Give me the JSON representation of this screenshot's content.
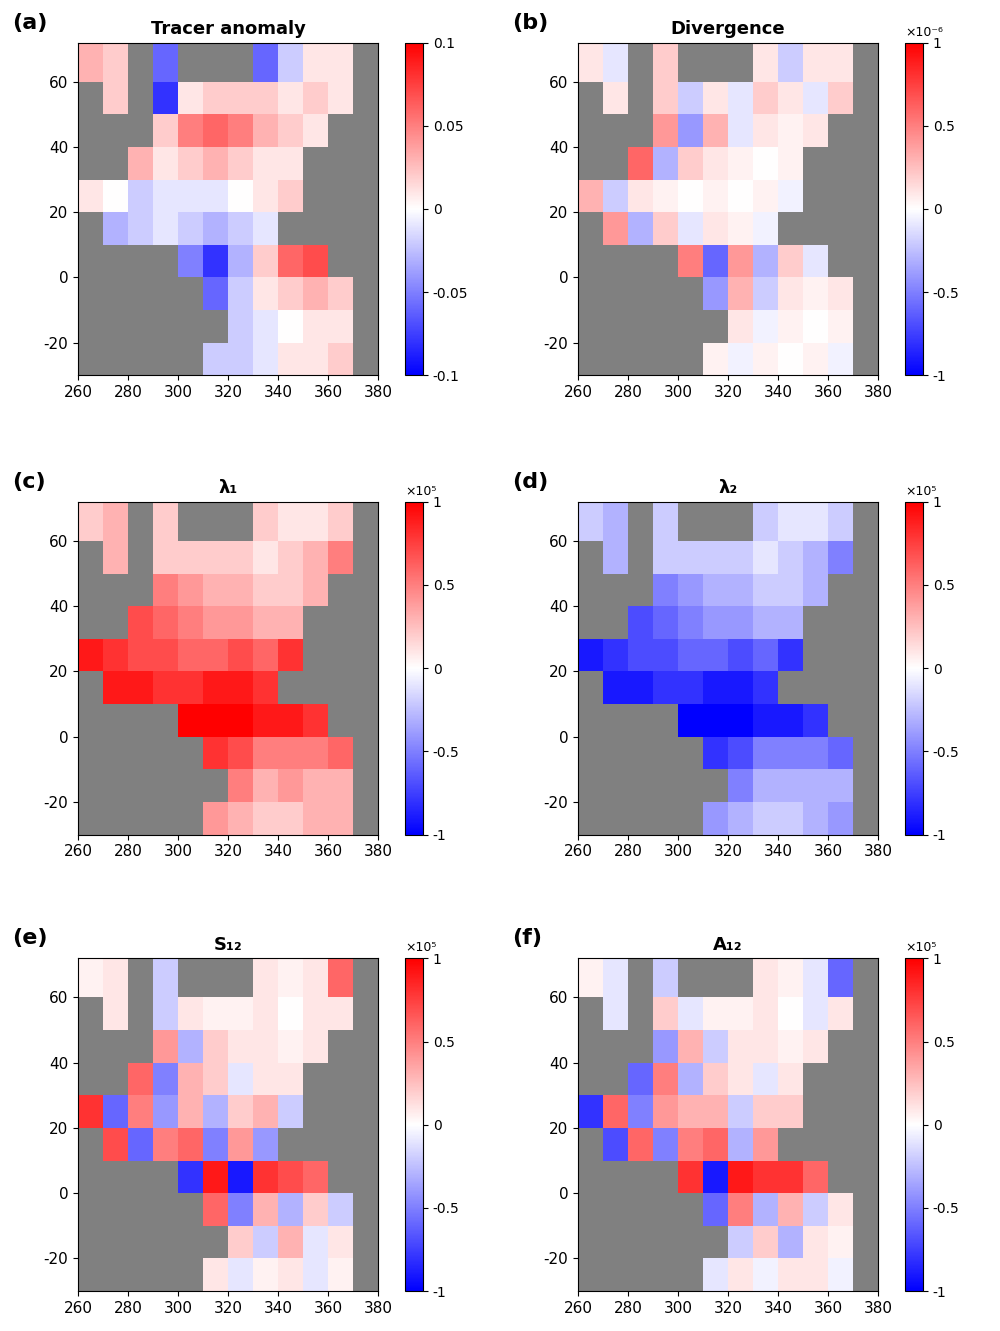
{
  "chart_data": [
    {
      "type": "heatmap",
      "panel_label": "(a)",
      "title": "Tracer anomaly",
      "x_edges": [
        260,
        270,
        280,
        290,
        300,
        310,
        320,
        330,
        340,
        350,
        360,
        370,
        380
      ],
      "y_edges": [
        -30,
        -20,
        -10,
        0,
        10,
        20,
        30,
        40,
        50,
        60,
        72
      ],
      "cells": [
        [
          null,
          null,
          null,
          null,
          null,
          -0.02,
          -0.02,
          -0.01,
          0.01,
          0.01,
          0.02,
          null
        ],
        [
          null,
          null,
          null,
          null,
          null,
          null,
          -0.02,
          -0.01,
          0.0,
          0.01,
          0.01,
          null
        ],
        [
          null,
          null,
          null,
          null,
          null,
          -0.06,
          -0.02,
          0.01,
          0.02,
          0.03,
          0.02,
          null
        ],
        [
          null,
          null,
          null,
          null,
          -0.05,
          -0.08,
          -0.03,
          0.02,
          0.06,
          0.07,
          null,
          null
        ],
        [
          null,
          -0.03,
          -0.02,
          -0.01,
          -0.02,
          -0.03,
          -0.02,
          -0.01,
          null,
          null,
          null,
          null
        ],
        [
          0.01,
          0.0,
          -0.02,
          -0.01,
          -0.01,
          -0.01,
          0.0,
          0.01,
          0.02,
          null,
          null,
          null
        ],
        [
          null,
          null,
          0.03,
          0.01,
          0.02,
          0.03,
          0.02,
          0.01,
          0.01,
          null,
          null,
          null
        ],
        [
          null,
          null,
          null,
          0.02,
          0.05,
          0.06,
          0.05,
          0.03,
          0.02,
          0.01,
          null,
          null
        ],
        [
          null,
          0.02,
          null,
          -0.08,
          0.01,
          0.02,
          0.02,
          0.02,
          0.01,
          0.02,
          0.01,
          null
        ],
        [
          0.03,
          0.02,
          null,
          -0.06,
          null,
          null,
          null,
          -0.06,
          -0.02,
          0.01,
          0.01,
          null
        ]
      ],
      "xlim": [
        260,
        380
      ],
      "ylim": [
        -30,
        72
      ],
      "xticks": [
        260,
        280,
        300,
        320,
        340,
        360,
        380
      ],
      "yticks": [
        -20,
        0,
        20,
        40,
        60
      ],
      "colorbar": {
        "range": [
          -0.1,
          0.1
        ],
        "ticks": [
          -0.1,
          -0.05,
          0,
          0.05,
          0.1
        ]
      }
    },
    {
      "type": "heatmap",
      "panel_label": "(b)",
      "title": "Divergence",
      "x_edges": [
        260,
        270,
        280,
        290,
        300,
        310,
        320,
        330,
        340,
        350,
        360,
        370,
        380
      ],
      "y_edges": [
        -30,
        -20,
        -10,
        0,
        10,
        20,
        30,
        40,
        50,
        60,
        72
      ],
      "cells": [
        [
          null,
          null,
          null,
          null,
          null,
          0.05,
          -0.05,
          0.05,
          0.0,
          0.05,
          -0.05,
          null
        ],
        [
          null,
          null,
          null,
          null,
          null,
          null,
          0.1,
          -0.05,
          0.05,
          0.0,
          0.05,
          null
        ],
        [
          null,
          null,
          null,
          null,
          null,
          -0.4,
          0.3,
          -0.2,
          0.1,
          0.05,
          0.1,
          null
        ],
        [
          null,
          null,
          null,
          null,
          0.5,
          -0.6,
          0.4,
          -0.3,
          0.2,
          -0.1,
          null,
          null
        ],
        [
          null,
          0.4,
          -0.3,
          0.2,
          -0.1,
          0.1,
          0.05,
          -0.05,
          null,
          null,
          null,
          null
        ],
        [
          0.3,
          -0.2,
          0.1,
          0.05,
          0.0,
          0.05,
          0.0,
          0.05,
          -0.05,
          null,
          null,
          null
        ],
        [
          null,
          null,
          0.6,
          -0.3,
          0.2,
          0.1,
          0.05,
          0.0,
          0.05,
          null,
          null,
          null
        ],
        [
          null,
          null,
          null,
          0.4,
          -0.4,
          0.3,
          -0.1,
          0.1,
          0.05,
          0.1,
          null,
          null
        ],
        [
          null,
          0.1,
          null,
          0.2,
          -0.2,
          0.1,
          -0.1,
          0.2,
          0.1,
          -0.1,
          0.2,
          null
        ],
        [
          0.1,
          -0.1,
          null,
          0.2,
          null,
          null,
          null,
          0.1,
          -0.2,
          0.1,
          0.1,
          null
        ]
      ],
      "xlim": [
        260,
        380
      ],
      "ylim": [
        -30,
        72
      ],
      "xticks": [
        260,
        280,
        300,
        320,
        340,
        360,
        380
      ],
      "yticks": [
        -20,
        0,
        20,
        40,
        60
      ],
      "colorbar": {
        "range": [
          -1,
          1
        ],
        "ticks": [
          -1,
          -0.5,
          0,
          0.5,
          1
        ],
        "multiplier": "×10⁻⁶"
      }
    },
    {
      "type": "heatmap",
      "panel_label": "(c)",
      "title": "λ₁",
      "x_edges": [
        260,
        270,
        280,
        290,
        300,
        310,
        320,
        330,
        340,
        350,
        360,
        370,
        380
      ],
      "y_edges": [
        -30,
        -20,
        -10,
        0,
        10,
        20,
        30,
        40,
        50,
        60,
        72
      ],
      "cells": [
        [
          null,
          null,
          null,
          null,
          null,
          0.4,
          0.3,
          0.2,
          0.2,
          0.3,
          0.3,
          null
        ],
        [
          null,
          null,
          null,
          null,
          null,
          null,
          0.5,
          0.3,
          0.4,
          0.3,
          0.3,
          null
        ],
        [
          null,
          null,
          null,
          null,
          null,
          0.8,
          0.7,
          0.5,
          0.5,
          0.5,
          0.6,
          null
        ],
        [
          null,
          null,
          null,
          null,
          1.0,
          1.0,
          1.0,
          0.9,
          0.9,
          0.8,
          null,
          null
        ],
        [
          null,
          0.9,
          0.9,
          0.8,
          0.8,
          0.9,
          0.9,
          0.8,
          null,
          null,
          null,
          null
        ],
        [
          0.9,
          0.8,
          0.7,
          0.7,
          0.6,
          0.6,
          0.7,
          0.6,
          0.8,
          null,
          null,
          null
        ],
        [
          null,
          null,
          0.7,
          0.6,
          0.5,
          0.4,
          0.4,
          0.3,
          0.3,
          null,
          null,
          null
        ],
        [
          null,
          null,
          null,
          0.5,
          0.4,
          0.3,
          0.3,
          0.2,
          0.2,
          0.3,
          null,
          null
        ],
        [
          null,
          0.3,
          null,
          0.2,
          0.2,
          0.2,
          0.2,
          0.1,
          0.2,
          0.3,
          0.5,
          null
        ],
        [
          0.2,
          0.3,
          null,
          0.2,
          null,
          null,
          null,
          0.2,
          0.1,
          0.1,
          0.2,
          null
        ]
      ],
      "xlim": [
        260,
        380
      ],
      "ylim": [
        -30,
        72
      ],
      "xticks": [
        260,
        280,
        300,
        320,
        340,
        360,
        380
      ],
      "yticks": [
        -20,
        0,
        20,
        40,
        60
      ],
      "colorbar": {
        "range": [
          -1,
          1
        ],
        "ticks": [
          -1,
          -0.5,
          0,
          0.5,
          1
        ],
        "multiplier": "×10⁵"
      }
    },
    {
      "type": "heatmap",
      "panel_label": "(d)",
      "title": "λ₂",
      "x_edges": [
        260,
        270,
        280,
        290,
        300,
        310,
        320,
        330,
        340,
        350,
        360,
        370,
        380
      ],
      "y_edges": [
        -30,
        -20,
        -10,
        0,
        10,
        20,
        30,
        40,
        50,
        60,
        72
      ],
      "cells": [
        [
          null,
          null,
          null,
          null,
          null,
          -0.4,
          -0.3,
          -0.2,
          -0.2,
          -0.3,
          -0.4,
          null
        ],
        [
          null,
          null,
          null,
          null,
          null,
          null,
          -0.5,
          -0.3,
          -0.3,
          -0.3,
          -0.3,
          null
        ],
        [
          null,
          null,
          null,
          null,
          null,
          -0.8,
          -0.7,
          -0.5,
          -0.5,
          -0.5,
          -0.6,
          null
        ],
        [
          null,
          null,
          null,
          null,
          -1.0,
          -1.0,
          -1.0,
          -0.9,
          -0.9,
          -0.8,
          null,
          null
        ],
        [
          null,
          -0.9,
          -0.9,
          -0.8,
          -0.8,
          -0.9,
          -0.9,
          -0.8,
          null,
          null,
          null,
          null
        ],
        [
          -0.9,
          -0.8,
          -0.7,
          -0.7,
          -0.6,
          -0.6,
          -0.7,
          -0.6,
          -0.8,
          null,
          null,
          null
        ],
        [
          null,
          null,
          -0.7,
          -0.6,
          -0.5,
          -0.4,
          -0.4,
          -0.3,
          -0.3,
          null,
          null,
          null
        ],
        [
          null,
          null,
          null,
          -0.5,
          -0.4,
          -0.3,
          -0.3,
          -0.2,
          -0.2,
          -0.3,
          null,
          null
        ],
        [
          null,
          -0.3,
          null,
          -0.2,
          -0.2,
          -0.2,
          -0.2,
          -0.1,
          -0.2,
          -0.3,
          -0.5,
          null
        ],
        [
          -0.2,
          -0.3,
          null,
          -0.2,
          null,
          null,
          null,
          -0.2,
          -0.1,
          -0.1,
          -0.2,
          null
        ]
      ],
      "xlim": [
        260,
        380
      ],
      "ylim": [
        -30,
        72
      ],
      "xticks": [
        260,
        280,
        300,
        320,
        340,
        360,
        380
      ],
      "yticks": [
        -20,
        0,
        20,
        40,
        60
      ],
      "colorbar": {
        "range": [
          -1,
          1
        ],
        "ticks": [
          -1,
          -0.5,
          0,
          0.5,
          1
        ],
        "multiplier": "×10⁵"
      }
    },
    {
      "type": "heatmap",
      "panel_label": "(e)",
      "title": "S₁₂",
      "x_edges": [
        260,
        270,
        280,
        290,
        300,
        310,
        320,
        330,
        340,
        350,
        360,
        370,
        380
      ],
      "y_edges": [
        -30,
        -20,
        -10,
        0,
        10,
        20,
        30,
        40,
        50,
        60,
        72
      ],
      "cells": [
        [
          null,
          null,
          null,
          null,
          null,
          0.1,
          -0.1,
          0.05,
          0.1,
          -0.1,
          0.05,
          null
        ],
        [
          null,
          null,
          null,
          null,
          null,
          null,
          0.2,
          -0.2,
          0.3,
          -0.1,
          0.1,
          null
        ],
        [
          null,
          null,
          null,
          null,
          null,
          0.6,
          -0.5,
          0.3,
          -0.3,
          0.2,
          -0.2,
          null
        ],
        [
          null,
          null,
          null,
          null,
          -0.8,
          0.9,
          -0.9,
          0.8,
          0.7,
          0.6,
          null,
          null
        ],
        [
          null,
          0.7,
          -0.6,
          0.5,
          0.6,
          -0.5,
          0.4,
          -0.4,
          null,
          null,
          null,
          null
        ],
        [
          0.8,
          -0.6,
          0.5,
          -0.4,
          0.3,
          -0.3,
          0.2,
          0.3,
          -0.2,
          null,
          null,
          null
        ],
        [
          null,
          null,
          0.6,
          -0.5,
          0.3,
          0.2,
          -0.1,
          0.1,
          0.1,
          null,
          null,
          null
        ],
        [
          null,
          null,
          null,
          0.4,
          -0.3,
          0.2,
          0.1,
          0.1,
          0.05,
          0.1,
          null,
          null
        ],
        [
          null,
          0.1,
          null,
          -0.2,
          0.1,
          0.05,
          0.05,
          0.1,
          0.0,
          0.1,
          0.1,
          null
        ],
        [
          0.05,
          0.1,
          null,
          -0.2,
          null,
          null,
          null,
          0.1,
          0.05,
          0.1,
          0.6,
          null
        ]
      ],
      "xlim": [
        260,
        380
      ],
      "ylim": [
        -30,
        72
      ],
      "xticks": [
        260,
        280,
        300,
        320,
        340,
        360,
        380
      ],
      "yticks": [
        -20,
        0,
        20,
        40,
        60
      ],
      "colorbar": {
        "range": [
          -1,
          1
        ],
        "ticks": [
          -1,
          -0.5,
          0,
          0.5,
          1
        ],
        "multiplier": "×10⁵"
      }
    },
    {
      "type": "heatmap",
      "panel_label": "(f)",
      "title": "A₁₂",
      "x_edges": [
        260,
        270,
        280,
        290,
        300,
        310,
        320,
        330,
        340,
        350,
        360,
        370,
        380
      ],
      "y_edges": [
        -30,
        -20,
        -10,
        0,
        10,
        20,
        30,
        40,
        50,
        60,
        72
      ],
      "cells": [
        [
          null,
          null,
          null,
          null,
          null,
          -0.1,
          0.1,
          -0.05,
          0.1,
          0.1,
          -0.05,
          null
        ],
        [
          null,
          null,
          null,
          null,
          null,
          null,
          -0.2,
          0.2,
          -0.3,
          0.1,
          0.05,
          null
        ],
        [
          null,
          null,
          null,
          null,
          null,
          -0.6,
          0.5,
          -0.3,
          0.3,
          -0.2,
          0.1,
          null
        ],
        [
          null,
          null,
          null,
          null,
          0.8,
          -0.9,
          0.9,
          0.8,
          0.8,
          0.6,
          null,
          null
        ],
        [
          null,
          -0.7,
          0.6,
          -0.5,
          0.5,
          0.6,
          -0.3,
          0.4,
          null,
          null,
          null,
          null
        ],
        [
          -0.8,
          0.6,
          -0.5,
          0.4,
          0.3,
          0.3,
          -0.2,
          0.2,
          0.2,
          null,
          null,
          null
        ],
        [
          null,
          null,
          -0.6,
          0.5,
          -0.3,
          0.2,
          0.1,
          -0.1,
          0.1,
          null,
          null,
          null
        ],
        [
          null,
          null,
          null,
          -0.4,
          0.3,
          -0.2,
          0.1,
          0.1,
          0.05,
          0.1,
          null,
          null
        ],
        [
          null,
          -0.1,
          null,
          0.2,
          -0.1,
          0.05,
          0.05,
          0.1,
          0.0,
          -0.1,
          0.1,
          null
        ],
        [
          0.05,
          -0.1,
          null,
          -0.2,
          null,
          null,
          null,
          0.1,
          0.05,
          -0.1,
          -0.6,
          null
        ]
      ],
      "xlim": [
        260,
        380
      ],
      "ylim": [
        -30,
        72
      ],
      "xticks": [
        260,
        280,
        300,
        320,
        340,
        360,
        380
      ],
      "yticks": [
        -20,
        0,
        20,
        40,
        60
      ],
      "colorbar": {
        "range": [
          -1,
          1
        ],
        "ticks": [
          -1,
          -0.5,
          0,
          0.5,
          1
        ],
        "multiplier": "×10⁵"
      }
    }
  ]
}
